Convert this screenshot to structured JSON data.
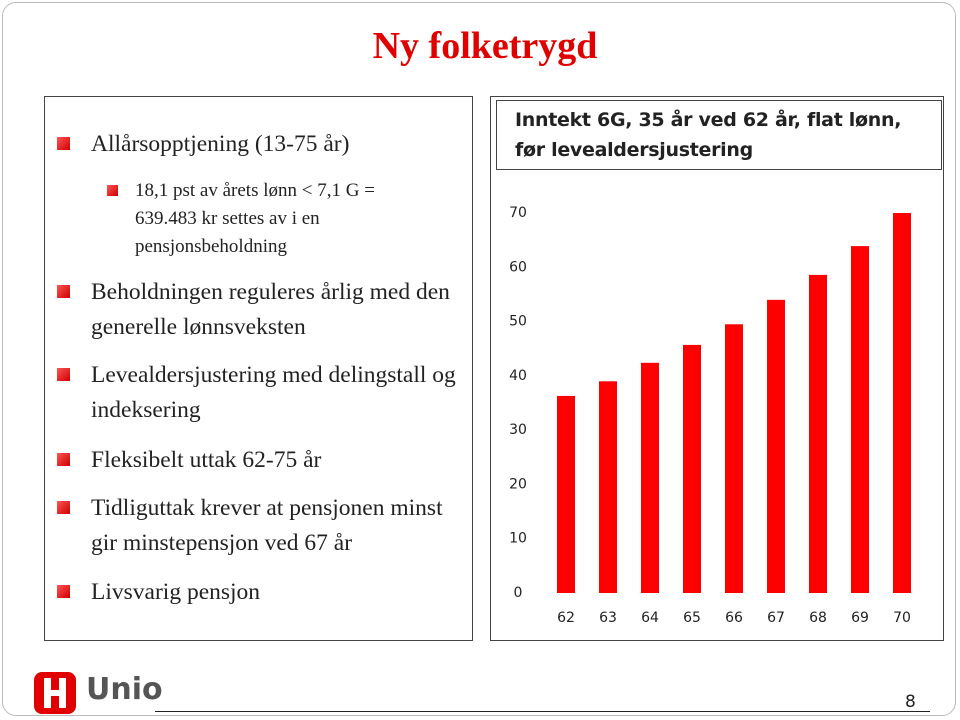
{
  "title": "Ny folketrygd",
  "bullets": [
    {
      "level": 1,
      "text": "Allårsopptjening (13-75 år)"
    },
    {
      "level": 2,
      "text": "18,1 pst av årets lønn < 7,1 G = 639.483 kr settes av i en pensjonsbeholdning"
    },
    {
      "level": 1,
      "text": "Beholdningen reguleres årlig med den generelle lønnsveksten"
    },
    {
      "level": 1,
      "text": "Levealdersjustering med delingstall og indeksering"
    },
    {
      "level": 1,
      "text": "Fleksibelt uttak 62-75 år"
    },
    {
      "level": 1,
      "text": "Tidliguttak krever at pensjonen minst gir minstepensjon ved 67 år"
    },
    {
      "level": 1,
      "text": "Livsvarig pensjon"
    }
  ],
  "chart_data": {
    "type": "bar",
    "title": "Inntekt 6G, 35 år ved 62 år, flat lønn, før levealdersjustering",
    "categories": [
      "62",
      "63",
      "64",
      "65",
      "66",
      "67",
      "68",
      "69",
      "70"
    ],
    "values": [
      36.3,
      39.0,
      42.4,
      45.7,
      49.5,
      54.0,
      58.6,
      63.9,
      70.0
    ],
    "color": "#ff0000",
    "ylim": [
      0,
      70
    ],
    "yticks": [
      0,
      10,
      20,
      30,
      40,
      50,
      60,
      70
    ],
    "grid": false
  },
  "logo": "Unio",
  "page_number": "8"
}
